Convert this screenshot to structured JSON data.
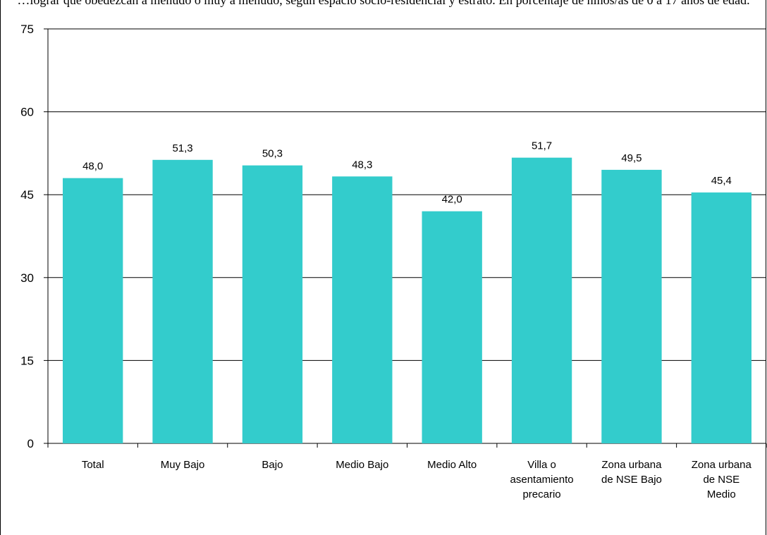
{
  "chart_data": {
    "type": "bar",
    "title": "…lograr que obedezcan a menudo o muy a menudo, según espacio socio-residencial y estrato. En porcentaje de niños/as de 0 a 17 años de edad.",
    "categories": [
      [
        "Total"
      ],
      [
        "Muy Bajo"
      ],
      [
        "Bajo"
      ],
      [
        "Medio Bajo"
      ],
      [
        "Medio Alto"
      ],
      [
        "Villa o",
        "asentamiento",
        "precario"
      ],
      [
        "Zona urbana",
        "de NSE Bajo"
      ],
      [
        "Zona urbana",
        "de NSE",
        "Medio"
      ]
    ],
    "values": [
      48.0,
      51.3,
      50.3,
      48.3,
      42.0,
      51.7,
      49.5,
      45.4
    ],
    "value_labels": [
      "48,0",
      "51,3",
      "50,3",
      "48,3",
      "42,0",
      "51,7",
      "49,5",
      "45,4"
    ],
    "ylim": [
      0,
      75
    ],
    "yticks": [
      0,
      15,
      30,
      45,
      60,
      75
    ],
    "grid": true,
    "legend": "none",
    "bar_color": "#33CCCC"
  }
}
